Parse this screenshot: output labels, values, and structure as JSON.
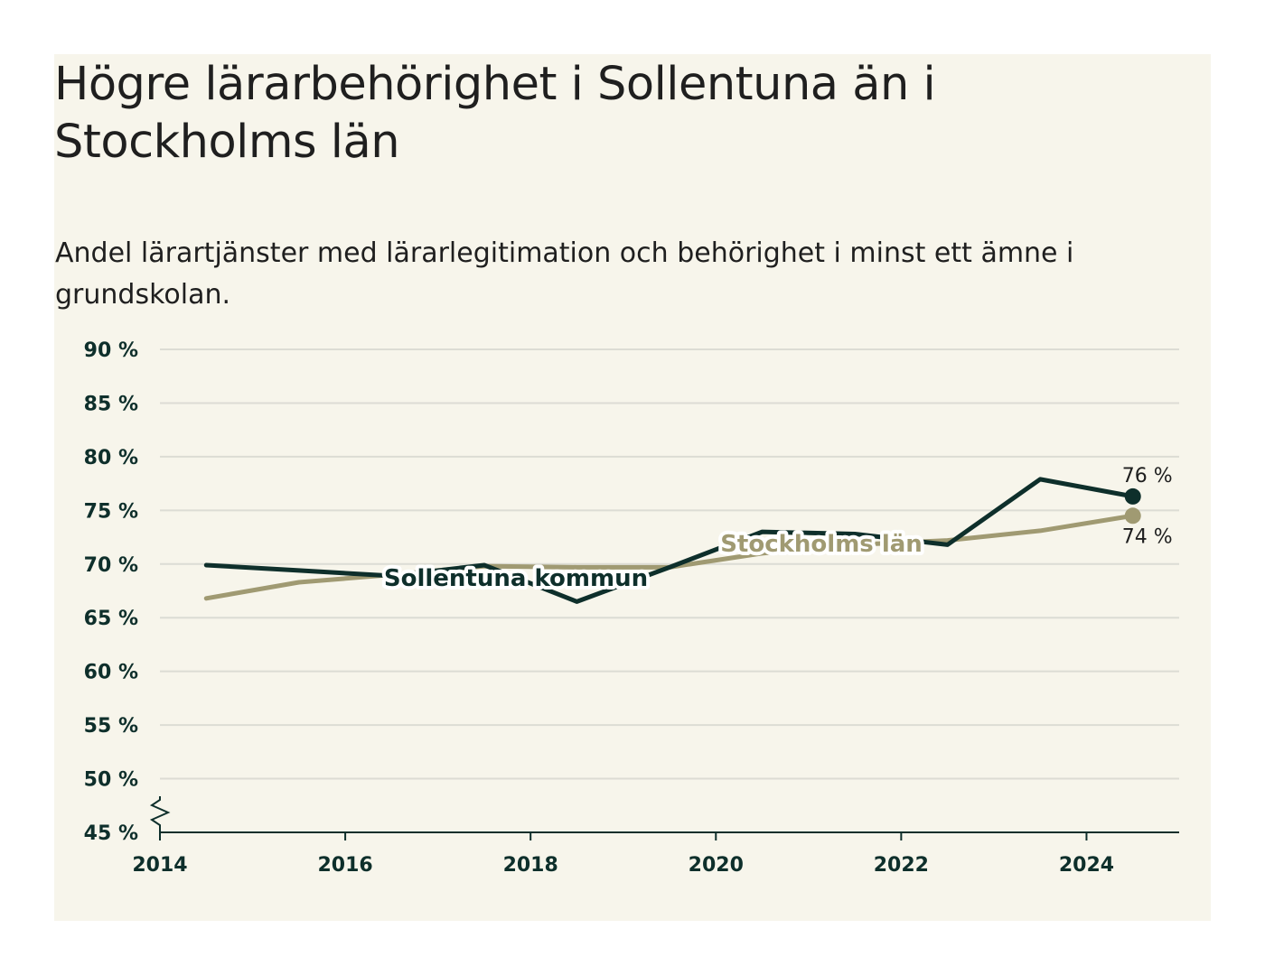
{
  "title": "Högre lärarbehörighet i Sollentuna än i Stockholms län",
  "subtitle": "Andel lärartjänster med lärarlegitimation och behörighet i minst ett ämne i grundskolan.",
  "colors": {
    "background": "#f7f5eb",
    "sollentuna": "#0e2f2b",
    "stockholm": "#a09a72",
    "grid": "#dcdcd4",
    "axis": "#0e2f2b"
  },
  "chart_data": {
    "type": "line",
    "title": "Högre lärarbehörighet i Sollentuna än i Stockholms län",
    "xlabel": "",
    "ylabel": "",
    "xlim": [
      2014,
      2025
    ],
    "ylim": [
      45,
      90
    ],
    "y_axis_break": true,
    "grid": true,
    "x_ticks": [
      2014,
      2016,
      2018,
      2020,
      2022,
      2024
    ],
    "y_ticks": [
      "45 %",
      "50 %",
      "55 %",
      "60 %",
      "65 %",
      "70 %",
      "75 %",
      "80 %",
      "85 %",
      "90 %"
    ],
    "y_tick_values": [
      45,
      50,
      55,
      60,
      65,
      70,
      75,
      80,
      85,
      90
    ],
    "x": [
      2014.5,
      2015.5,
      2016.5,
      2017.5,
      2018.5,
      2019.5,
      2020.5,
      2021.5,
      2022.5,
      2023.5,
      2024.5
    ],
    "series": [
      {
        "name": "Sollentuna kommun",
        "color": "#0e2f2b",
        "values": [
          69.9,
          69.4,
          68.9,
          69.9,
          66.5,
          69.7,
          73.0,
          72.8,
          71.8,
          77.9,
          76.3
        ],
        "end_label": "76 %"
      },
      {
        "name": "Stockholms län",
        "color": "#a09a72",
        "values": [
          66.8,
          68.3,
          69.0,
          69.8,
          69.7,
          69.7,
          71.0,
          71.8,
          72.2,
          73.1,
          74.5
        ],
        "end_label": "74 %"
      }
    ]
  }
}
